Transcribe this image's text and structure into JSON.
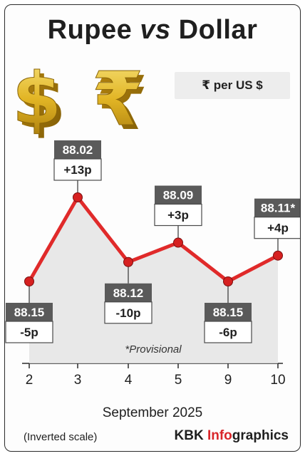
{
  "header": {
    "title_part1": "Rupee ",
    "title_vs": "vs",
    "title_part2": " Dollar",
    "unit_label": "₹ per US $"
  },
  "icons": [
    "dollar-sign-icon",
    "rupee-sign-icon"
  ],
  "colors": {
    "line": "#e02a2a",
    "marker": "#d62020",
    "area": "#e4e4e4",
    "value_box": "#5a5a5a",
    "brand_accent": "#d9262a"
  },
  "chart_data": {
    "type": "line",
    "categories": [
      "2",
      "3",
      "4",
      "5",
      "9",
      "10"
    ],
    "values": [
      88.15,
      88.02,
      88.12,
      88.09,
      88.15,
      88.11
    ],
    "value_labels": [
      "88.15",
      "88.02",
      "88.12",
      "88.09",
      "88.15",
      "88.11*"
    ],
    "change_labels": [
      "-5p",
      "+13p",
      "-10p",
      "+3p",
      "-6p",
      "+4p"
    ],
    "callout_positions": [
      "below",
      "above",
      "below",
      "above",
      "below",
      "above"
    ],
    "inverted_scale": true,
    "xlabel": "September 2025",
    "annotation": "*Provisional",
    "area_fill": true,
    "grid": false
  },
  "footer": {
    "xlabel": "September 2025",
    "note": "(Inverted scale)",
    "brand_part1": "KBK ",
    "brand_part2": "Info",
    "brand_part3": "graphics"
  }
}
